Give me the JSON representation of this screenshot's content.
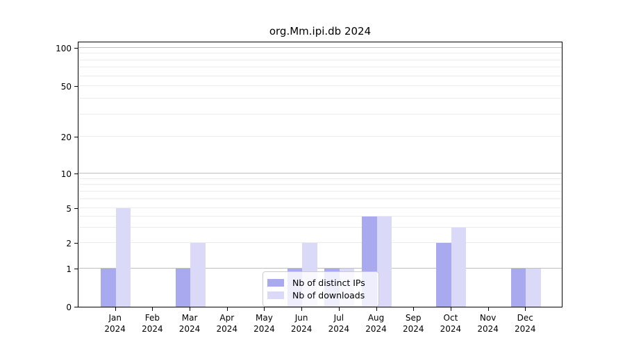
{
  "title": "org.Mm.ipi.db 2024",
  "legend": {
    "items": [
      {
        "label": "Nb of distinct IPs",
        "color": "#a9a9f0"
      },
      {
        "label": "Nb of downloads",
        "color": "#dadaf8"
      }
    ]
  },
  "chart_data": {
    "type": "bar",
    "title": "org.Mm.ipi.db 2024",
    "categories": [
      "Jan 2024",
      "Feb 2024",
      "Mar 2024",
      "Apr 2024",
      "May 2024",
      "Jun 2024",
      "Jul 2024",
      "Aug 2024",
      "Sep 2024",
      "Oct 2024",
      "Nov 2024",
      "Dec 2024"
    ],
    "x_tick_month": [
      "Jan",
      "Feb",
      "Mar",
      "Apr",
      "May",
      "Jun",
      "Jul",
      "Aug",
      "Sep",
      "Oct",
      "Nov",
      "Dec"
    ],
    "x_tick_year": "2024",
    "series": [
      {
        "name": "Nb of distinct IPs",
        "color": "#a9a9f0",
        "values": [
          1,
          0,
          1,
          0,
          0,
          1,
          1,
          4,
          0,
          2,
          0,
          1
        ]
      },
      {
        "name": "Nb of downloads",
        "color": "#dadaf8",
        "values": [
          5,
          0,
          2,
          0,
          0,
          2,
          1,
          4,
          0,
          3,
          0,
          1
        ]
      }
    ],
    "yticks": [
      0,
      1,
      2,
      5,
      10,
      20,
      50,
      100
    ],
    "minor_gridlines": [
      3,
      4,
      6,
      7,
      8,
      9,
      30,
      40,
      60,
      70,
      80,
      90
    ],
    "scale": "log-like (custom)",
    "ylim": [
      0,
      115
    ],
    "grid": true,
    "legend_position": "lower center",
    "colors": {
      "grid_decade": "#bfbfbf",
      "grid_regular": "#ebebeb",
      "axis": "#000000",
      "background": "#ffffff"
    }
  }
}
